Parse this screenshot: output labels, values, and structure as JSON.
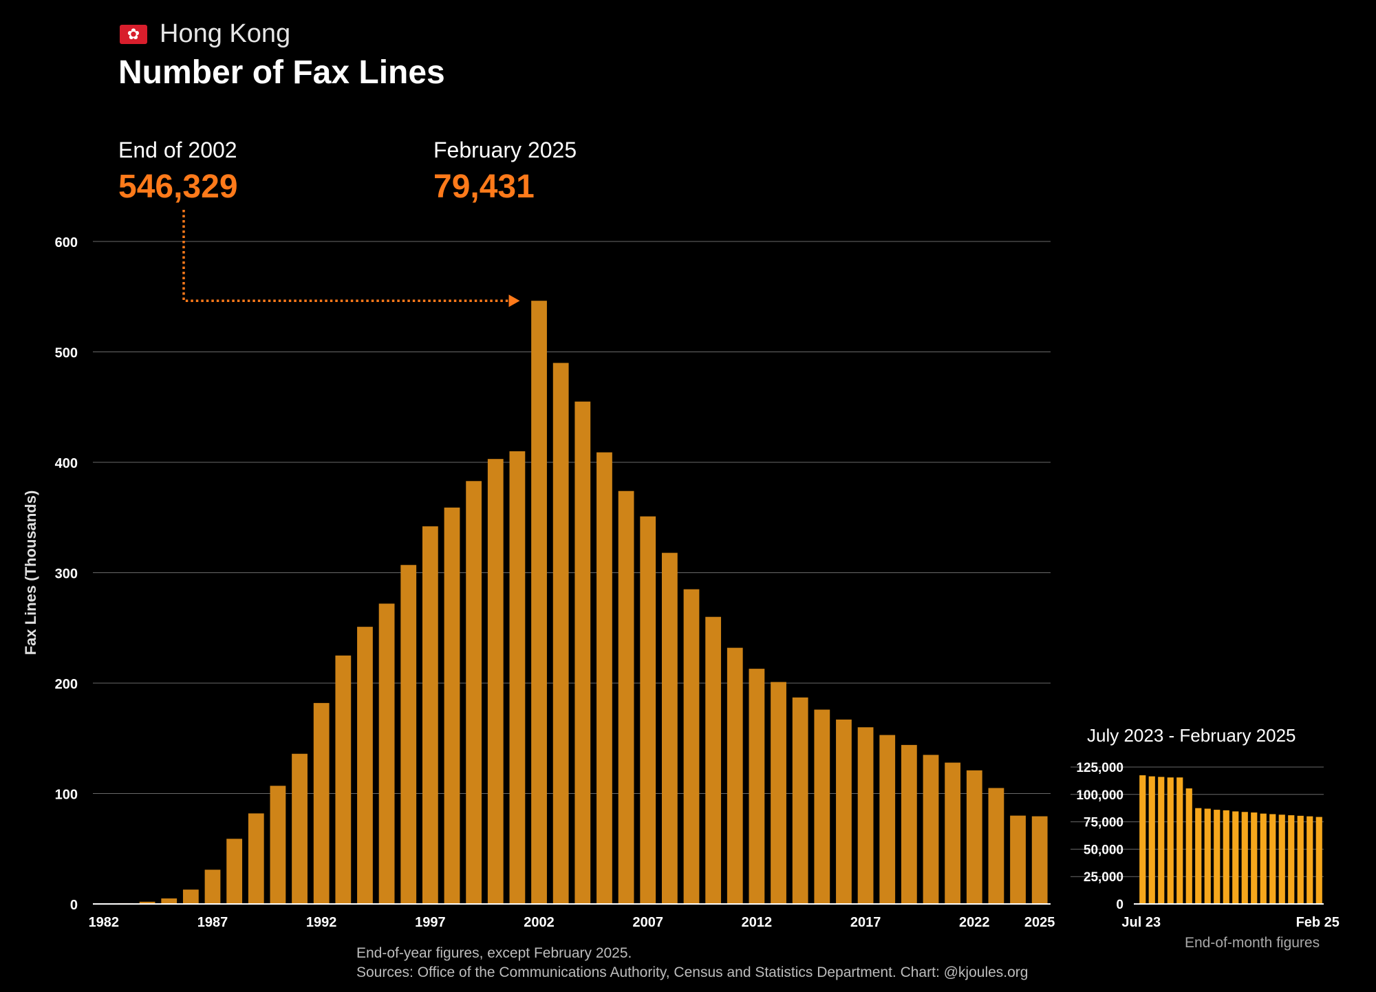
{
  "header": {
    "region": "Hong Kong",
    "title": "Number of Fax Lines"
  },
  "callouts": [
    {
      "label": "End of 2002",
      "value": "546,329"
    },
    {
      "label": "February 2025",
      "value": "79,431"
    }
  ],
  "colors": {
    "bar": "#cf8418",
    "inset_bar": "#f6a71c",
    "accent": "#ff7a1a",
    "flag": "#d81e2c"
  },
  "icons": {
    "flag": "hong-kong-flag-icon"
  },
  "chart_data": [
    {
      "type": "bar",
      "ylabel": "Fax Lines (Thousands)",
      "xlabel": "",
      "ylim": [
        0,
        600
      ],
      "yticks": [
        0,
        100,
        200,
        300,
        400,
        500,
        600
      ],
      "xtick_labels": [
        "1982",
        "1987",
        "1992",
        "1997",
        "2002",
        "2007",
        "2012",
        "2017",
        "2022",
        "2025"
      ],
      "grid": true,
      "legend": "none",
      "categories": [
        1982,
        1983,
        1984,
        1985,
        1986,
        1987,
        1988,
        1989,
        1990,
        1991,
        1992,
        1993,
        1994,
        1995,
        1996,
        1997,
        1998,
        1999,
        2000,
        2001,
        2002,
        2003,
        2004,
        2005,
        2006,
        2007,
        2008,
        2009,
        2010,
        2011,
        2012,
        2013,
        2014,
        2015,
        2016,
        2017,
        2018,
        2019,
        2020,
        2021,
        2022,
        2023,
        2024,
        2025
      ],
      "values": [
        0.3,
        0.7,
        2,
        5,
        13,
        31,
        59,
        82,
        107,
        136,
        182,
        225,
        251,
        272,
        307,
        342,
        359,
        383,
        403,
        410,
        546.3,
        490,
        455,
        409,
        374,
        351,
        318,
        285,
        260,
        232,
        213,
        201,
        187,
        176,
        167,
        160,
        153,
        144,
        135,
        128,
        121,
        105,
        80,
        79.4
      ],
      "annotation": {
        "from_callout": "End of 2002",
        "to_category": 2002
      }
    },
    {
      "type": "bar",
      "title": "July 2023 - February 2025",
      "note": "End-of-month figures",
      "ylim": [
        0,
        125000
      ],
      "yticks": [
        0,
        25000,
        50000,
        75000,
        100000,
        125000
      ],
      "ytick_labels": [
        "0",
        "25,000",
        "50,000",
        "75,000",
        "100,000",
        "125,000"
      ],
      "xtick_labels": [
        "Jul 23",
        "Feb 25"
      ],
      "grid": true,
      "legend": "none",
      "categories": [
        "2023-07",
        "2023-08",
        "2023-09",
        "2023-10",
        "2023-11",
        "2023-12",
        "2024-01",
        "2024-02",
        "2024-03",
        "2024-04",
        "2024-05",
        "2024-06",
        "2024-07",
        "2024-08",
        "2024-09",
        "2024-10",
        "2024-11",
        "2024-12",
        "2025-01",
        "2025-02"
      ],
      "values": [
        117500,
        116500,
        116000,
        115500,
        115500,
        105500,
        87500,
        87000,
        86000,
        85500,
        84500,
        84000,
        83500,
        82500,
        82000,
        81500,
        81000,
        80500,
        80000,
        79431
      ]
    }
  ],
  "footnote": {
    "line1": "End-of-year figures, except February 2025.",
    "line2": "Sources: Office of the Communications Authority, Census and Statistics Department. Chart: @kjoules.org"
  }
}
